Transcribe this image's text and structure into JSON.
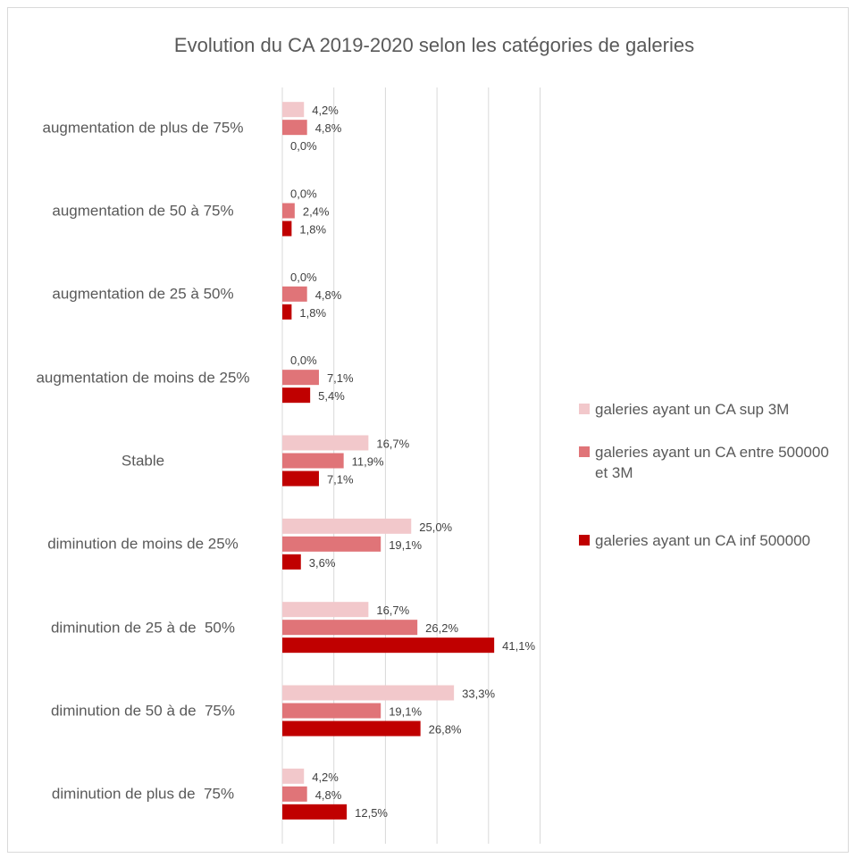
{
  "chart_data": {
    "type": "bar",
    "orientation": "horizontal",
    "title": "Evolution du CA 2019-2020 selon les catégories de galeries",
    "categories": [
      "augmentation de plus de 75%",
      "augmentation de 50 à 75%",
      "augmentation de 25 à 50%",
      "augmentation de moins de 25%",
      "Stable",
      "diminution de moins de 25%",
      "diminution de 25 à de  50%",
      "diminution de 50 à de  75%",
      "diminution de plus de  75%"
    ],
    "series": [
      {
        "name": "galeries ayant un CA sup 3M",
        "color": "#f2c8cb",
        "values": [
          4.2,
          0.0,
          0.0,
          0.0,
          16.7,
          25.0,
          16.7,
          33.3,
          4.2
        ],
        "value_labels": [
          "4,2%",
          "0,0%",
          "0,0%",
          "0,0%",
          "16,7%",
          "25,0%",
          "16,7%",
          "33,3%",
          "4,2%"
        ]
      },
      {
        "name": "galeries ayant un CA entre 500000 et 3M",
        "color": "#e07478",
        "values": [
          4.8,
          2.4,
          4.8,
          7.1,
          11.9,
          19.1,
          26.2,
          19.1,
          4.8
        ],
        "value_labels": [
          "4,8%",
          "2,4%",
          "4,8%",
          "7,1%",
          "11,9%",
          "19,1%",
          "26,2%",
          "19,1%",
          "4,8%"
        ]
      },
      {
        "name": "galeries ayant un CA inf 500000",
        "color": "#c00000",
        "values": [
          0.0,
          1.8,
          1.8,
          5.4,
          7.1,
          3.6,
          41.1,
          26.8,
          12.5
        ],
        "value_labels": [
          "0,0%",
          "1,8%",
          "1,8%",
          "5,4%",
          "7,1%",
          "3,6%",
          "41,1%",
          "26,8%",
          "12,5%"
        ]
      }
    ],
    "xlim": [
      0,
      50
    ],
    "xticks": [
      0,
      10,
      20,
      30,
      40,
      50
    ],
    "grid": true,
    "legend": "right"
  }
}
